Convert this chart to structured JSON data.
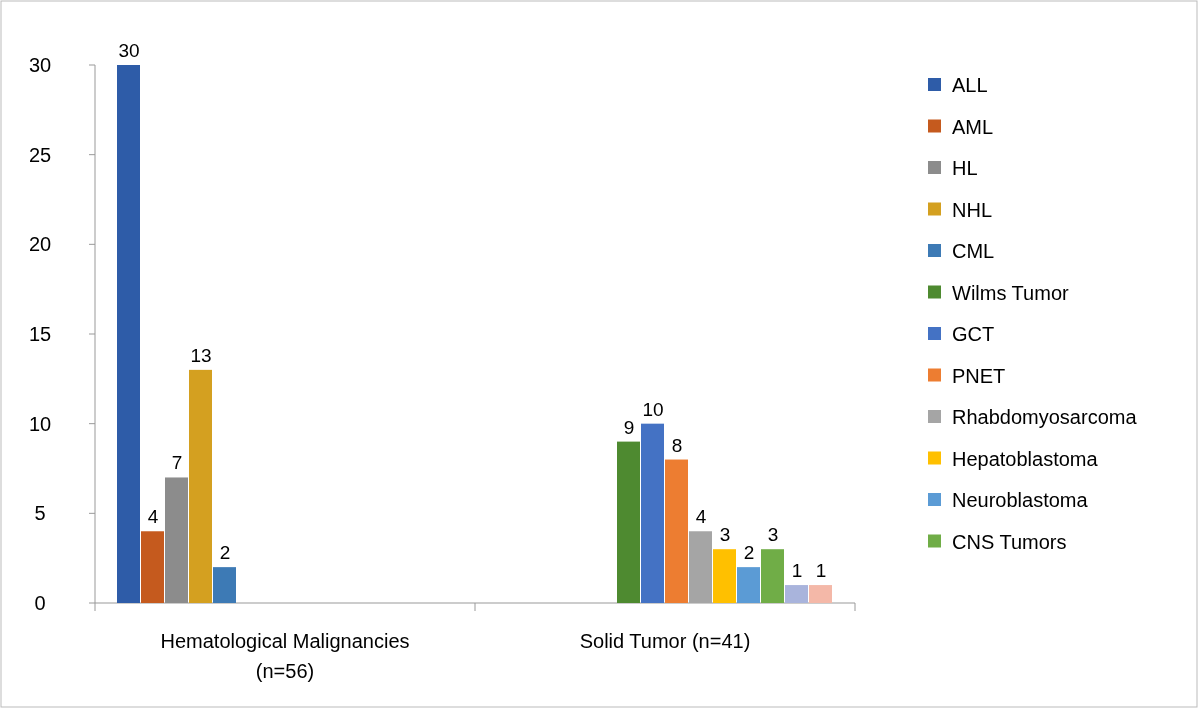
{
  "chart_data": {
    "type": "bar",
    "categories": [
      "Hematological Malignancies\n(n=56)",
      "Solid Tumor (n=41)"
    ],
    "series": [
      {
        "name": "ALL",
        "color": "#2e5ca8",
        "values": [
          30,
          null
        ]
      },
      {
        "name": "AML",
        "color": "#c55a1e",
        "values": [
          4,
          null
        ]
      },
      {
        "name": "HL",
        "color": "#8c8c8c",
        "values": [
          7,
          null
        ]
      },
      {
        "name": "NHL",
        "color": "#d4a020",
        "values": [
          13,
          null
        ]
      },
      {
        "name": "CML",
        "color": "#3d7ab5",
        "values": [
          2,
          null
        ]
      },
      {
        "name": "Wilms Tumor",
        "color": "#4e8a30",
        "values": [
          null,
          9
        ]
      },
      {
        "name": "GCT",
        "color": "#4472c4",
        "values": [
          null,
          10
        ]
      },
      {
        "name": "PNET",
        "color": "#ed7d31",
        "values": [
          null,
          8
        ]
      },
      {
        "name": "Rhabdomyosarcoma",
        "color": "#a5a5a5",
        "values": [
          null,
          4
        ]
      },
      {
        "name": "Hepatoblastoma",
        "color": "#ffc000",
        "values": [
          null,
          3
        ]
      },
      {
        "name": "Neuroblastoma",
        "color": "#5b9bd5",
        "values": [
          null,
          2
        ]
      },
      {
        "name": "CNS Tumors",
        "color": "#70ad47",
        "values": [
          null,
          3
        ]
      },
      {
        "color": "#a9b4dc",
        "values": [
          null,
          1
        ]
      },
      {
        "color": "#f4b8a8",
        "values": [
          null,
          1
        ]
      }
    ],
    "ylim": [
      0,
      30
    ],
    "yticks": [
      0,
      5,
      10,
      15,
      20,
      25,
      30
    ],
    "grid": false,
    "legend": "right",
    "data_labels": true
  }
}
